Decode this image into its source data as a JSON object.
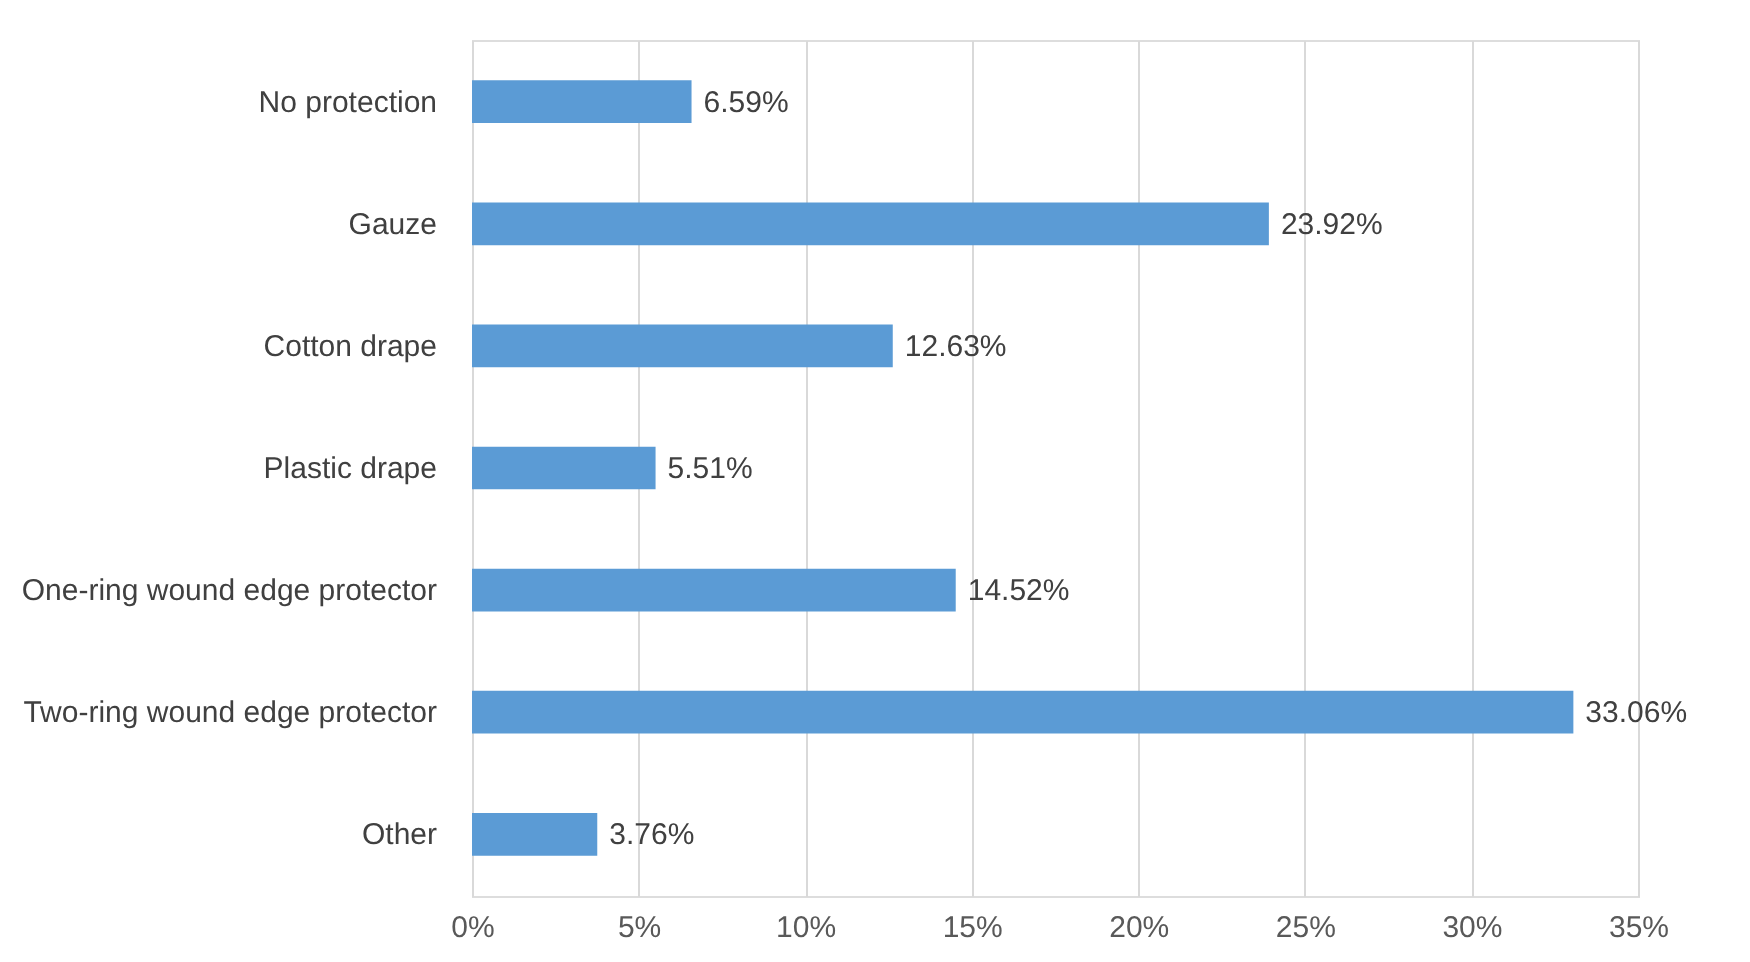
{
  "chart_data": {
    "type": "bar",
    "orientation": "horizontal",
    "categories": [
      "No protection",
      "Gauze",
      "Cotton drape",
      "Plastic drape",
      "One-ring wound edge protector",
      "Two-ring wound edge protector",
      "Other"
    ],
    "values": [
      6.59,
      23.92,
      12.63,
      5.51,
      14.52,
      33.06,
      3.76
    ],
    "value_labels": [
      "6.59%",
      "23.92%",
      "12.63%",
      "5.51%",
      "14.52%",
      "33.06%",
      "3.76%"
    ],
    "color": "#5b9bd5",
    "xlim": [
      0,
      35
    ],
    "xticks": [
      {
        "value": 0,
        "label": "0%"
      },
      {
        "value": 5,
        "label": "5%"
      },
      {
        "value": 10,
        "label": "10%"
      },
      {
        "value": 15,
        "label": "15%"
      },
      {
        "value": 20,
        "label": "20%"
      },
      {
        "value": 25,
        "label": "25%"
      },
      {
        "value": 30,
        "label": "30%"
      },
      {
        "value": 35,
        "label": "35%"
      }
    ],
    "grid": "x"
  }
}
